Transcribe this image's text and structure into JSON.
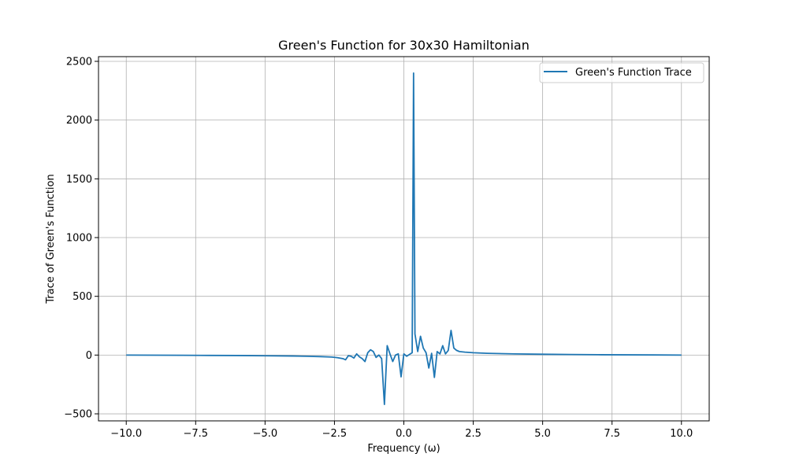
{
  "chart_data": {
    "type": "line",
    "title": "Green's Function for 30x30 Hamiltonian",
    "xlabel": "Frequency (ω)",
    "ylabel": "Trace of Green's Function",
    "xlim": [
      -11.0,
      11.0
    ],
    "ylim": [
      -560,
      2540
    ],
    "xticks": [
      -10.0,
      -7.5,
      -5.0,
      -2.5,
      0.0,
      2.5,
      5.0,
      7.5,
      10.0
    ],
    "xtick_labels": [
      "−10.0",
      "−7.5",
      "−5.0",
      "−2.5",
      "0.0",
      "2.5",
      "5.0",
      "7.5",
      "10.0"
    ],
    "yticks": [
      -500,
      0,
      500,
      1000,
      1500,
      2000,
      2500
    ],
    "ytick_labels": [
      "−500",
      "0",
      "500",
      "1000",
      "1500",
      "2000",
      "2500"
    ],
    "grid": true,
    "legend_position": "top-right",
    "series": [
      {
        "name": "Green's Function Trace",
        "color": "#1f77b4",
        "x": [
          -10.0,
          -9.0,
          -8.0,
          -7.0,
          -6.0,
          -5.0,
          -4.0,
          -3.5,
          -3.0,
          -2.6,
          -2.4,
          -2.2,
          -2.1,
          -2.0,
          -1.9,
          -1.8,
          -1.7,
          -1.6,
          -1.5,
          -1.4,
          -1.3,
          -1.2,
          -1.1,
          -1.0,
          -0.9,
          -0.8,
          -0.7,
          -0.6,
          -0.5,
          -0.4,
          -0.3,
          -0.2,
          -0.1,
          0.0,
          0.1,
          0.2,
          0.3,
          0.35,
          0.4,
          0.5,
          0.6,
          0.7,
          0.8,
          0.9,
          1.0,
          1.1,
          1.2,
          1.3,
          1.4,
          1.5,
          1.6,
          1.7,
          1.8,
          1.9,
          2.0,
          2.2,
          2.5,
          3.0,
          4.0,
          5.0,
          6.0,
          7.0,
          8.0,
          9.0,
          10.0
        ],
        "y": [
          0,
          -1,
          -2,
          -3,
          -4,
          -6,
          -8,
          -10,
          -13,
          -17,
          -22,
          -30,
          -40,
          -5,
          -10,
          -25,
          10,
          -15,
          -30,
          -55,
          20,
          45,
          30,
          -20,
          0,
          -30,
          -420,
          80,
          10,
          -55,
          0,
          10,
          -185,
          10,
          -10,
          5,
          20,
          2400,
          180,
          30,
          160,
          60,
          20,
          -110,
          15,
          -190,
          30,
          10,
          80,
          10,
          40,
          210,
          60,
          40,
          30,
          25,
          20,
          15,
          10,
          7,
          5,
          3,
          2,
          1,
          0
        ]
      }
    ]
  }
}
